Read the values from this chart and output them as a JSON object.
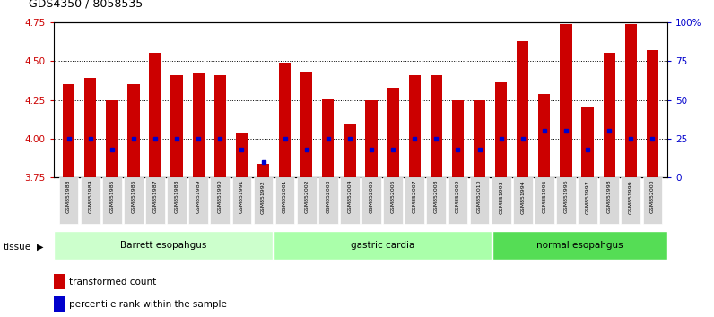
{
  "title": "GDS4350 / 8058535",
  "samples": [
    "GSM851983",
    "GSM851984",
    "GSM851985",
    "GSM851986",
    "GSM851987",
    "GSM851988",
    "GSM851989",
    "GSM851990",
    "GSM851991",
    "GSM851992",
    "GSM852001",
    "GSM852002",
    "GSM852003",
    "GSM852004",
    "GSM852005",
    "GSM852006",
    "GSM852007",
    "GSM852008",
    "GSM852009",
    "GSM852010",
    "GSM851993",
    "GSM851994",
    "GSM851995",
    "GSM851996",
    "GSM851997",
    "GSM851998",
    "GSM851999",
    "GSM852000"
  ],
  "bar_values": [
    4.35,
    4.39,
    4.25,
    4.35,
    4.55,
    4.41,
    4.42,
    4.41,
    4.04,
    3.84,
    4.49,
    4.43,
    4.26,
    4.1,
    4.25,
    4.33,
    4.41,
    4.41,
    4.25,
    4.25,
    4.36,
    4.63,
    4.29,
    4.74,
    4.2,
    4.55,
    4.74,
    4.57
  ],
  "percentile_values": [
    25,
    25,
    18,
    25,
    25,
    25,
    25,
    25,
    18,
    10,
    25,
    18,
    25,
    25,
    18,
    18,
    25,
    25,
    18,
    18,
    25,
    25,
    30,
    30,
    18,
    30,
    25,
    25
  ],
  "groups": [
    {
      "label": "Barrett esopahgus",
      "start": 0,
      "end": 10,
      "color": "#ccffcc"
    },
    {
      "label": "gastric cardia",
      "start": 10,
      "end": 20,
      "color": "#aaffaa"
    },
    {
      "label": "normal esopahgus",
      "start": 20,
      "end": 28,
      "color": "#55dd55"
    }
  ],
  "ylim": [
    3.75,
    4.75
  ],
  "yticks": [
    3.75,
    4.0,
    4.25,
    4.5,
    4.75
  ],
  "yticks_right": [
    0,
    25,
    50,
    75,
    100
  ],
  "yticks_right_labels": [
    "0",
    "25",
    "50",
    "75",
    "100%"
  ],
  "bar_color": "#cc0000",
  "dot_color": "#0000cc",
  "bar_bottom": 3.75
}
